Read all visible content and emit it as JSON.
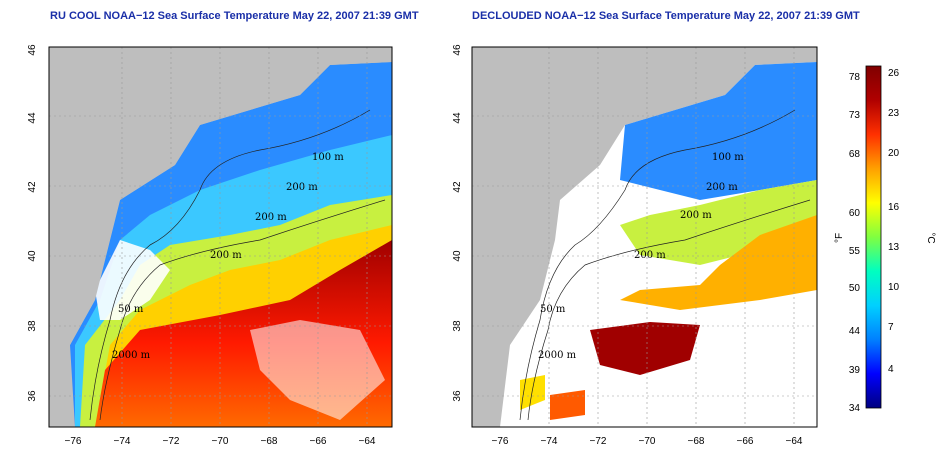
{
  "maps": [
    {
      "title": "RU COOL NOAA−12 Sea Surface Temperature May 22, 2007 21:39 GMT",
      "contour_labels": [
        "100 m",
        "200 m",
        "200 m",
        "200 m",
        "50 m",
        "2000 m"
      ]
    },
    {
      "title": "DECLOUDED NOAA−12 Sea Surface Temperature May 22, 2007 21:39 GMT",
      "contour_labels": [
        "100 m",
        "200 m",
        "200 m",
        "200 m",
        "50 m",
        "2000 m"
      ]
    }
  ],
  "axes": {
    "x_ticks": [
      "−76",
      "−74",
      "−72",
      "−70",
      "−68",
      "−66",
      "−64"
    ],
    "y_ticks": [
      "46",
      "44",
      "42",
      "40",
      "38",
      "36"
    ]
  },
  "colorbar": {
    "fahrenheit_label": "°F",
    "celsius_label": "°C",
    "fahrenheit_ticks": [
      "78",
      "73",
      "68",
      "60",
      "55",
      "50",
      "44",
      "39",
      "34"
    ],
    "celsius_ticks": [
      "26",
      "23",
      "20",
      "16",
      "13",
      "10",
      "7",
      "4"
    ],
    "colors": [
      "#000080",
      "#0000ff",
      "#0080ff",
      "#00d0ff",
      "#00ffc0",
      "#80ff40",
      "#ffff00",
      "#ffa000",
      "#ff3000",
      "#b00000",
      "#800000"
    ]
  },
  "colors": {
    "land": "#bebebe",
    "cloud": "#ffffff",
    "title": "#1a2fa8"
  }
}
